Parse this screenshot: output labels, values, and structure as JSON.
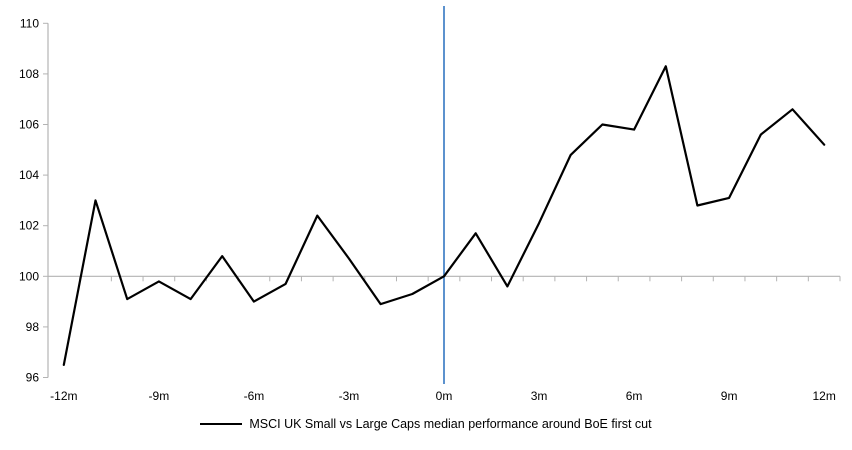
{
  "chart_data": {
    "type": "line",
    "title": "",
    "xlabel": "",
    "ylabel": "",
    "x": [
      -12,
      -11,
      -10,
      -9,
      -8,
      -7,
      -6,
      -5,
      -4,
      -3,
      -2,
      -1,
      0,
      1,
      2,
      3,
      4,
      5,
      6,
      7,
      8,
      9,
      10,
      11,
      12
    ],
    "series": [
      {
        "name": "MSCI UK Small vs Large Caps median performance around BoE first cut",
        "values": [
          96.5,
          103.0,
          99.1,
          99.8,
          99.1,
          100.8,
          99.0,
          99.7,
          102.4,
          100.7,
          98.9,
          99.3,
          100.0,
          101.7,
          99.6,
          102.1,
          104.8,
          106.0,
          105.8,
          108.3,
          102.8,
          103.1,
          105.6,
          106.6,
          105.2
        ]
      }
    ],
    "ylim": [
      96,
      110
    ],
    "y_ticks": [
      110,
      108,
      106,
      104,
      102,
      100,
      98,
      96
    ],
    "x_tick_labels": [
      {
        "x": -12,
        "label": "-12m"
      },
      {
        "x": -9,
        "label": "-9m"
      },
      {
        "x": -6,
        "label": "-6m"
      },
      {
        "x": -3,
        "label": "-3m"
      },
      {
        "x": 0,
        "label": "0m"
      },
      {
        "x": 3,
        "label": "3m"
      },
      {
        "x": 6,
        "label": "6m"
      },
      {
        "x": 9,
        "label": "9m"
      },
      {
        "x": 12,
        "label": "12m"
      }
    ],
    "baseline_y": 100,
    "event_line_x": 0,
    "grid": "off",
    "legend_position": "bottom",
    "colors": {
      "series": "#000000",
      "axis": "#b3b3b3",
      "event_line": "#4a86c8",
      "tick_text": "#000000"
    }
  },
  "legend": {
    "label": "MSCI UK Small vs Large Caps median performance around BoE first cut"
  }
}
